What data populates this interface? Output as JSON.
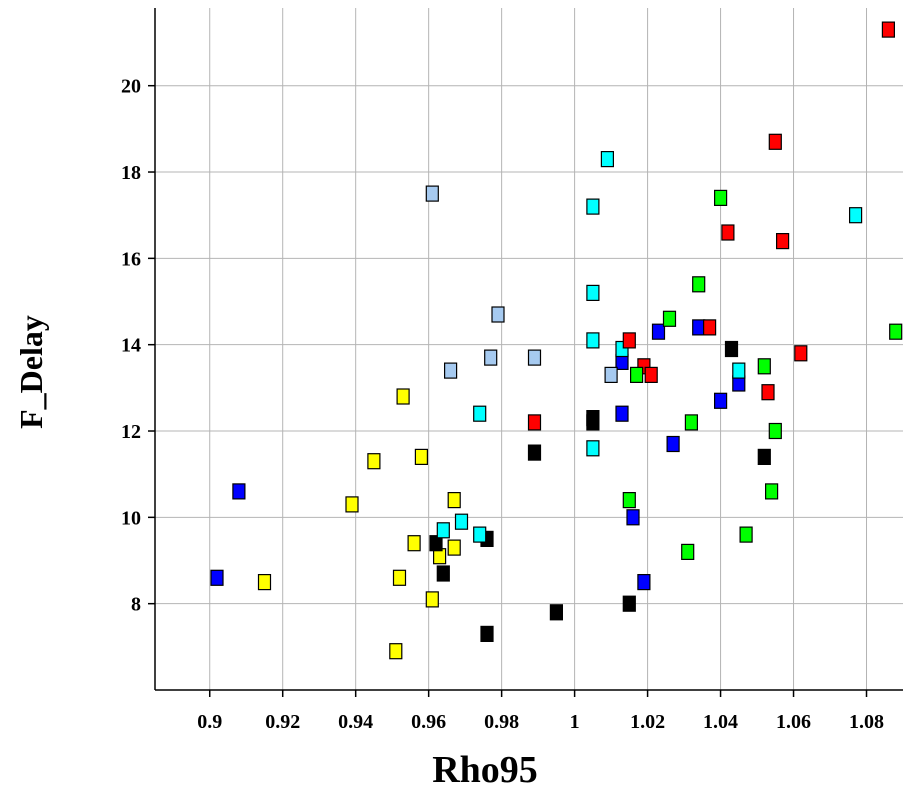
{
  "chart_data": {
    "type": "scatter",
    "xlabel": "Rho95",
    "ylabel": "F_Delay",
    "xlim": [
      0.885,
      1.09
    ],
    "ylim": [
      6.0,
      21.8
    ],
    "grid": true,
    "x_ticks": [
      "0.9",
      "0.92",
      "0.94",
      "0.96",
      "0.98",
      "1",
      "1.02",
      "1.04",
      "1.06",
      "1.08"
    ],
    "y_ticks": [
      "8",
      "10",
      "12",
      "14",
      "16",
      "18",
      "20"
    ],
    "colors": {
      "yellow": "#ffff00",
      "blue": "#0000ff",
      "black": "#000000",
      "cyan": "#00ffff",
      "lightblue": "#a6caf0",
      "red": "#ff0000",
      "green": "#00ff00"
    },
    "series": [
      {
        "color_key": "yellow",
        "points": [
          [
            0.915,
            8.5
          ],
          [
            0.939,
            10.3
          ],
          [
            0.945,
            11.3
          ],
          [
            0.951,
            6.9
          ],
          [
            0.952,
            8.6
          ],
          [
            0.953,
            12.8
          ],
          [
            0.956,
            9.4
          ],
          [
            0.958,
            11.4
          ],
          [
            0.961,
            8.1
          ],
          [
            0.963,
            9.1
          ],
          [
            0.967,
            10.4
          ],
          [
            0.967,
            9.3
          ]
        ]
      },
      {
        "color_key": "blue",
        "points": [
          [
            0.902,
            8.6
          ],
          [
            0.908,
            10.6
          ],
          [
            1.013,
            12.4
          ],
          [
            1.013,
            13.6
          ],
          [
            1.016,
            10.0
          ],
          [
            1.019,
            8.5
          ],
          [
            1.023,
            14.3
          ],
          [
            1.027,
            11.7
          ],
          [
            1.034,
            14.4
          ],
          [
            1.04,
            12.7
          ],
          [
            1.045,
            13.1
          ]
        ]
      },
      {
        "color_key": "black",
        "points": [
          [
            0.962,
            9.4
          ],
          [
            0.964,
            8.7
          ],
          [
            0.976,
            9.5
          ],
          [
            0.976,
            7.3
          ],
          [
            0.989,
            11.5
          ],
          [
            0.995,
            7.8
          ],
          [
            1.005,
            12.3
          ],
          [
            1.005,
            12.2
          ],
          [
            1.015,
            8.0
          ],
          [
            1.043,
            13.9
          ],
          [
            1.052,
            11.4
          ]
        ]
      },
      {
        "color_key": "cyan",
        "points": [
          [
            0.964,
            9.7
          ],
          [
            0.969,
            9.9
          ],
          [
            0.974,
            12.4
          ],
          [
            0.974,
            9.6
          ],
          [
            1.005,
            17.2
          ],
          [
            1.005,
            15.2
          ],
          [
            1.005,
            14.1
          ],
          [
            1.005,
            11.6
          ],
          [
            1.009,
            18.3
          ],
          [
            1.013,
            13.9
          ],
          [
            1.045,
            13.4
          ],
          [
            1.077,
            17.0
          ]
        ]
      },
      {
        "color_key": "lightblue",
        "points": [
          [
            0.961,
            17.5
          ],
          [
            0.966,
            13.4
          ],
          [
            0.977,
            13.7
          ],
          [
            0.979,
            14.7
          ],
          [
            0.989,
            13.7
          ],
          [
            1.01,
            13.3
          ]
        ]
      },
      {
        "color_key": "red",
        "points": [
          [
            0.989,
            12.2
          ],
          [
            1.015,
            14.1
          ],
          [
            1.019,
            13.5
          ],
          [
            1.021,
            13.3
          ],
          [
            1.037,
            14.4
          ],
          [
            1.042,
            16.6
          ],
          [
            1.053,
            12.9
          ],
          [
            1.055,
            18.7
          ],
          [
            1.057,
            16.4
          ],
          [
            1.062,
            13.8
          ],
          [
            1.086,
            21.3
          ]
        ]
      },
      {
        "color_key": "green",
        "points": [
          [
            1.015,
            10.4
          ],
          [
            1.017,
            13.3
          ],
          [
            1.026,
            14.6
          ],
          [
            1.031,
            9.2
          ],
          [
            1.032,
            12.2
          ],
          [
            1.034,
            15.4
          ],
          [
            1.04,
            17.4
          ],
          [
            1.047,
            9.6
          ],
          [
            1.052,
            13.5
          ],
          [
            1.054,
            10.6
          ],
          [
            1.055,
            12.0
          ],
          [
            1.088,
            14.3
          ]
        ]
      }
    ]
  }
}
